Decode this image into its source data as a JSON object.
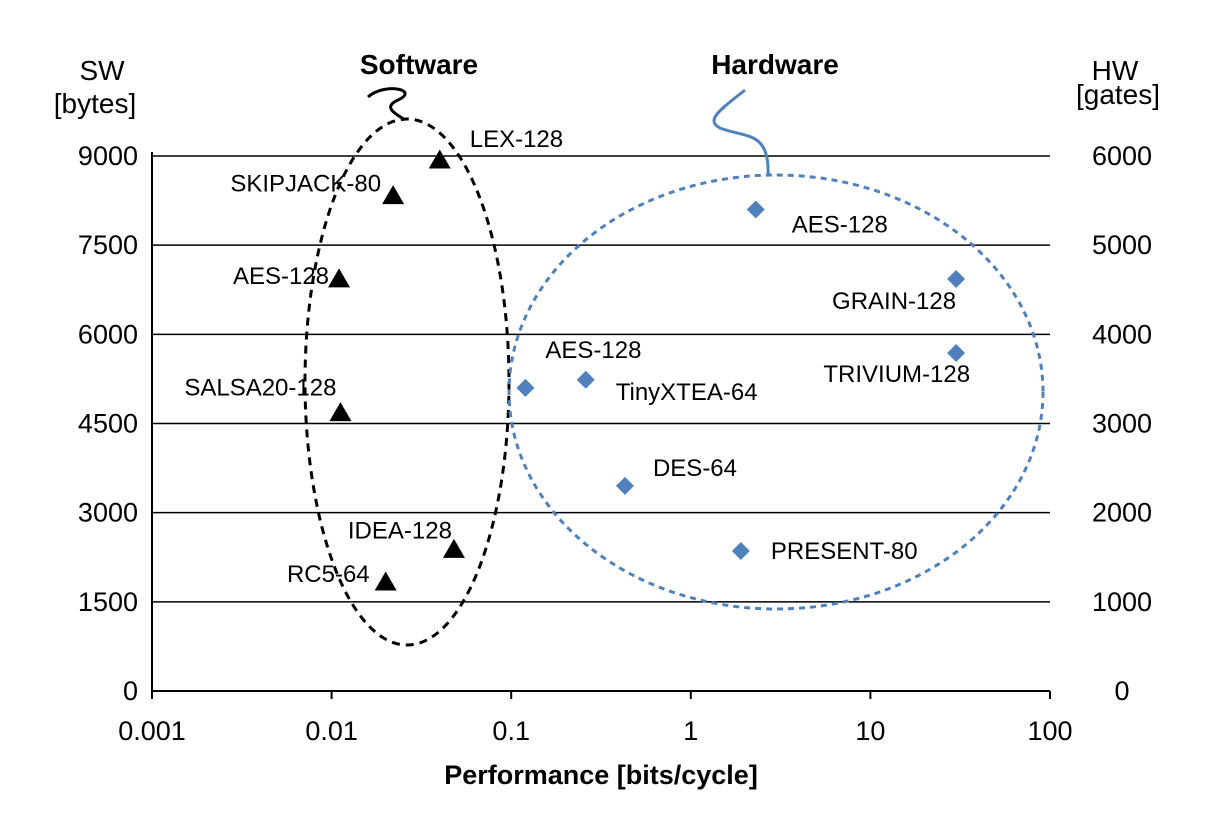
{
  "chart_data": {
    "type": "scatter",
    "x_scale": "log",
    "xlabel": "Performance [bits/cycle]",
    "x_ticks": [
      "0.001",
      "0.01",
      "0.1",
      "1",
      "10",
      "100"
    ],
    "xlim": [
      0.001,
      100
    ],
    "y_left": {
      "label_line1": "SW",
      "label_line2": "[bytes]",
      "lim": [
        0,
        9000
      ],
      "ticks": [
        "0",
        "1500",
        "3000",
        "4500",
        "6000",
        "7500",
        "9000"
      ]
    },
    "y_right": {
      "label_line1": "HW",
      "label_line2": "[gates]",
      "lim": [
        0,
        6000
      ],
      "ticks": [
        "0",
        "1000",
        "2000",
        "3000",
        "4000",
        "5000",
        "6000"
      ]
    },
    "grid": true,
    "groups": {
      "software": "Software",
      "hardware": "Hardware"
    },
    "series": [
      {
        "name": "Software",
        "axis": "left",
        "marker": "triangle",
        "color": "#000000",
        "points": [
          {
            "label": "LEX-128",
            "x": 0.04,
            "y": 8950
          },
          {
            "label": "SKIPJACK-80",
            "x": 0.022,
            "y": 8350
          },
          {
            "label": "AES-128",
            "x": 0.011,
            "y": 6950
          },
          {
            "label": "SALSA20-128",
            "x": 0.0112,
            "y": 4700
          },
          {
            "label": "IDEA-128",
            "x": 0.048,
            "y": 2400
          },
          {
            "label": "RC5-64",
            "x": 0.02,
            "y": 1850
          }
        ]
      },
      {
        "name": "Hardware",
        "axis": "right",
        "marker": "diamond",
        "color": "#4f81bd",
        "points": [
          {
            "label": "AES-128",
            "x": 2.3,
            "y": 5400
          },
          {
            "label": "GRAIN-128",
            "x": 30,
            "y": 4620
          },
          {
            "label": "TRIVIUM-128",
            "x": 30,
            "y": 3790
          },
          {
            "label": "AES-128",
            "x": 0.12,
            "y": 3400
          },
          {
            "label": "TinyXTEA-64",
            "x": 0.26,
            "y": 3490
          },
          {
            "label": "DES-64",
            "x": 0.43,
            "y": 2300
          },
          {
            "label": "PRESENT-80",
            "x": 1.9,
            "y": 1570
          }
        ]
      }
    ]
  }
}
